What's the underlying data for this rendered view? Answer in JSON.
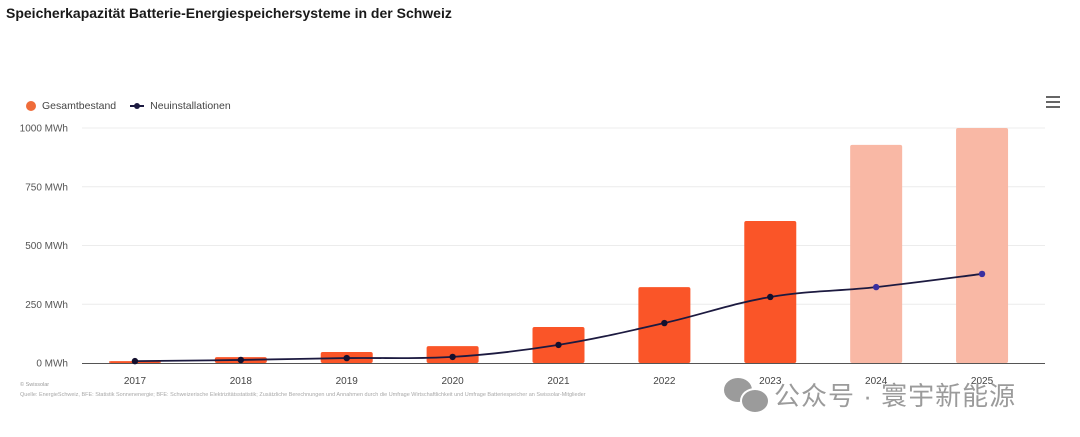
{
  "title": "Speicherkapazität Batterie-Energiespeichersysteme in der Schweiz",
  "menu_icon": "hamburger-menu-icon",
  "credit": "© Swissolar",
  "source": "Quelle: EnergieSchweiz, BFE: Statistik Sonnenenergie; BFE: Schweizerische Elektrizitätsstatistik; Zusätzliche Berechnungen und Annahmen durch die Umfrage Wirtschaftlichkeit und Umfrage Batteriespeicher an Swissolar-Mitglieder",
  "watermark": {
    "icon": "wechat-icon",
    "text": "公众号 · 寰宇新能源"
  },
  "colors": {
    "bar_actual": "#fa5528",
    "bar_forecast": "#f9b8a5",
    "line": "#1c1a40",
    "marker_actual": "#14102e",
    "marker_forecast": "#3a2fa0",
    "legend_bar": "#ef6c3a",
    "grid": "#ececec",
    "axis": "#555555"
  },
  "chart_data": {
    "type": "bar",
    "title": "Speicherkapazität Batterie-Energiespeichersysteme in der Schweiz",
    "xlabel": "",
    "ylabel": "",
    "categories": [
      "2017",
      "2018",
      "2019",
      "2020",
      "2021",
      "2022",
      "2023",
      "2024",
      "2025"
    ],
    "forecast_categories": [
      "2024",
      "2025"
    ],
    "series": [
      {
        "name": "Gesamtbestand",
        "type": "bar",
        "values": [
          8,
          25,
          47,
          72,
          153,
          323,
          604,
          928,
          1000
        ]
      },
      {
        "name": "Neuinstallationen",
        "type": "line",
        "values": [
          8,
          13,
          21,
          26,
          77,
          170,
          281,
          323,
          379
        ]
      }
    ],
    "ylim": [
      0,
      1000
    ],
    "yticks": [
      0,
      250,
      500,
      750,
      1000
    ],
    "ytick_labels": [
      "0 MWh",
      "250 MWh",
      "500 MWh",
      "750 MWh",
      "1000 MWh"
    ],
    "grid": true,
    "legend_position": "top-left"
  }
}
